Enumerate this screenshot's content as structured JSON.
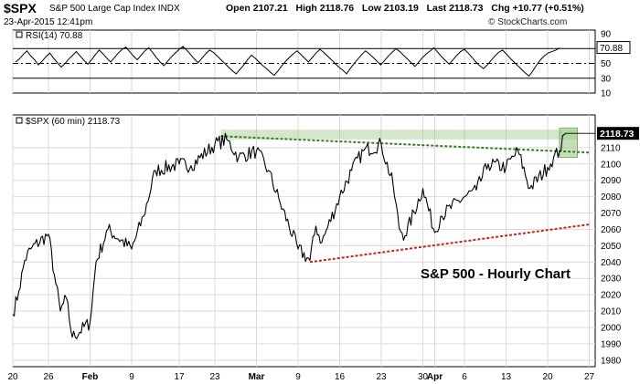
{
  "header": {
    "symbol": "$SPX",
    "name": "S&P 500 Large Cap Index",
    "exchange": "INDX",
    "date": "23-Apr-2015 12:41pm",
    "open_label": "Open",
    "open": "2107.21",
    "high_label": "High",
    "high": "2118.76",
    "low_label": "Low",
    "low": "2103.19",
    "last_label": "Last",
    "last": "2118.73",
    "chg_label": "Chg",
    "chg": "+10.77 (+0.51%)",
    "credit": "© StockCharts.com"
  },
  "chart_data": [
    {
      "type": "line",
      "panel": "indicator",
      "legend": "RSI(14) 70.88",
      "last_value": 70.88,
      "ylim": [
        10,
        95
      ],
      "y_ticks": [
        10,
        30,
        50,
        70,
        90
      ],
      "reference_lines": [
        30,
        50,
        70
      ],
      "shaded_extremes": "above 70 and below 30",
      "series": [
        {
          "values": [
            52,
            56,
            62,
            67,
            60,
            55,
            48,
            53,
            59,
            64,
            57,
            51,
            45,
            50,
            56,
            61,
            66,
            60,
            54,
            49,
            55,
            62,
            68,
            63,
            57,
            52,
            58,
            64,
            69,
            72,
            66,
            60,
            55,
            61,
            67,
            71,
            65,
            58,
            52,
            47,
            53,
            59,
            64,
            69,
            73,
            68,
            62,
            56,
            51,
            57,
            63,
            68,
            65,
            60,
            55,
            50,
            45,
            40,
            36,
            42,
            48,
            55,
            61,
            57,
            52,
            47,
            43,
            38,
            34,
            40,
            47,
            53,
            58,
            63,
            67,
            62,
            57,
            52,
            58,
            64,
            69,
            65,
            60,
            55,
            50,
            45,
            41,
            36,
            43,
            50,
            56,
            62,
            67,
            63,
            58,
            53,
            48,
            54,
            60,
            65,
            70,
            66,
            61,
            56,
            51,
            46,
            52,
            58,
            63,
            67,
            71,
            65,
            59,
            54,
            49,
            55,
            61,
            66,
            69,
            64,
            58,
            52,
            47,
            43,
            48,
            54,
            60,
            65,
            68,
            63,
            57,
            52,
            47,
            42,
            37,
            33,
            40,
            48,
            55,
            60,
            64,
            66,
            68,
            70.88
          ]
        }
      ]
    },
    {
      "type": "line",
      "panel": "price",
      "legend": "$SPX (60 min) 2118.73",
      "last_value": 2118.73,
      "ylim": [
        1976,
        2130
      ],
      "y_ticks": [
        1980,
        1990,
        2000,
        2010,
        2020,
        2030,
        2040,
        2050,
        2060,
        2070,
        2080,
        2090,
        2100,
        2110
      ],
      "x_axis": {
        "range": [
          "2015-01-20",
          "2015-04-28"
        ],
        "ticks": [
          {
            "date": "2015-01-20",
            "label": "20"
          },
          {
            "date": "2015-01-26",
            "label": "26"
          },
          {
            "date": "2015-02-02",
            "label": "Feb"
          },
          {
            "date": "2015-02-09",
            "label": "9"
          },
          {
            "date": "2015-02-17",
            "label": "17"
          },
          {
            "date": "2015-02-23",
            "label": "23"
          },
          {
            "date": "2015-03-02",
            "label": "Mar"
          },
          {
            "date": "2015-03-09",
            "label": "9"
          },
          {
            "date": "2015-03-16",
            "label": "16"
          },
          {
            "date": "2015-03-23",
            "label": "23"
          },
          {
            "date": "2015-03-30",
            "label": "30"
          },
          {
            "date": "2015-04-01",
            "label": "Apr"
          },
          {
            "date": "2015-04-06",
            "label": "6"
          },
          {
            "date": "2015-04-13",
            "label": "13"
          },
          {
            "date": "2015-04-20",
            "label": "20"
          },
          {
            "date": "2015-04-27",
            "label": "27"
          }
        ]
      },
      "series": [
        {
          "x": [
            "2015-01-20",
            "2015-01-21",
            "2015-01-22",
            "2015-01-23",
            "2015-01-26",
            "2015-01-27",
            "2015-01-28",
            "2015-01-29",
            "2015-01-30",
            "2015-02-02",
            "2015-02-03",
            "2015-02-05",
            "2015-02-09",
            "2015-02-11",
            "2015-02-13",
            "2015-02-17",
            "2015-02-19",
            "2015-02-23",
            "2015-02-25",
            "2015-02-27",
            "2015-03-02",
            "2015-03-04",
            "2015-03-06",
            "2015-03-09",
            "2015-03-11",
            "2015-03-12",
            "2015-03-13",
            "2015-03-16",
            "2015-03-18",
            "2015-03-20",
            "2015-03-23",
            "2015-03-25",
            "2015-03-26",
            "2015-03-27",
            "2015-03-30",
            "2015-04-01",
            "2015-04-02",
            "2015-04-06",
            "2015-04-08",
            "2015-04-10",
            "2015-04-13",
            "2015-04-15",
            "2015-04-17",
            "2015-04-20",
            "2015-04-21",
            "2015-04-22",
            "2015-04-23"
          ],
          "values": [
            2008,
            2022,
            2041,
            2048,
            2057,
            2032,
            2010,
            2018,
            1994,
            2003,
            2040,
            2060,
            2048,
            2068,
            2096,
            2100,
            2099,
            2112,
            2115,
            2104,
            2108,
            2096,
            2076,
            2048,
            2041,
            2062,
            2052,
            2080,
            2096,
            2108,
            2112,
            2087,
            2061,
            2056,
            2085,
            2058,
            2068,
            2080,
            2084,
            2100,
            2098,
            2108,
            2085,
            2098,
            2104,
            2108,
            2118.73
          ]
        }
      ],
      "annotations": [
        {
          "type": "trendline",
          "style": "green-dotted",
          "from": [
            "2015-02-24",
            2117
          ],
          "to": [
            "2015-04-27",
            2107
          ]
        },
        {
          "type": "trendline",
          "style": "red-dotted",
          "from": [
            "2015-03-11",
            2040
          ],
          "to": [
            "2015-04-27",
            2063
          ]
        },
        {
          "type": "horizontal-band",
          "from_date": "2015-02-24",
          "to_date": "2015-04-25",
          "low": 2115,
          "high": 2121
        },
        {
          "type": "highlight-box",
          "from_date": "2015-04-22",
          "to_date": "2015-04-25",
          "low": 2104,
          "high": 2122
        },
        {
          "type": "text",
          "text": "S&P 500 - Hourly Chart"
        }
      ]
    }
  ],
  "colors": {
    "price_line": "#000000",
    "green_trendline": "#3a7d1f",
    "red_trendline": "#c0261e",
    "highlight": "#9ec98a",
    "last_badge_bg": "#000000",
    "last_badge_text": "#ffffff",
    "grid": "#d9d9d9"
  }
}
